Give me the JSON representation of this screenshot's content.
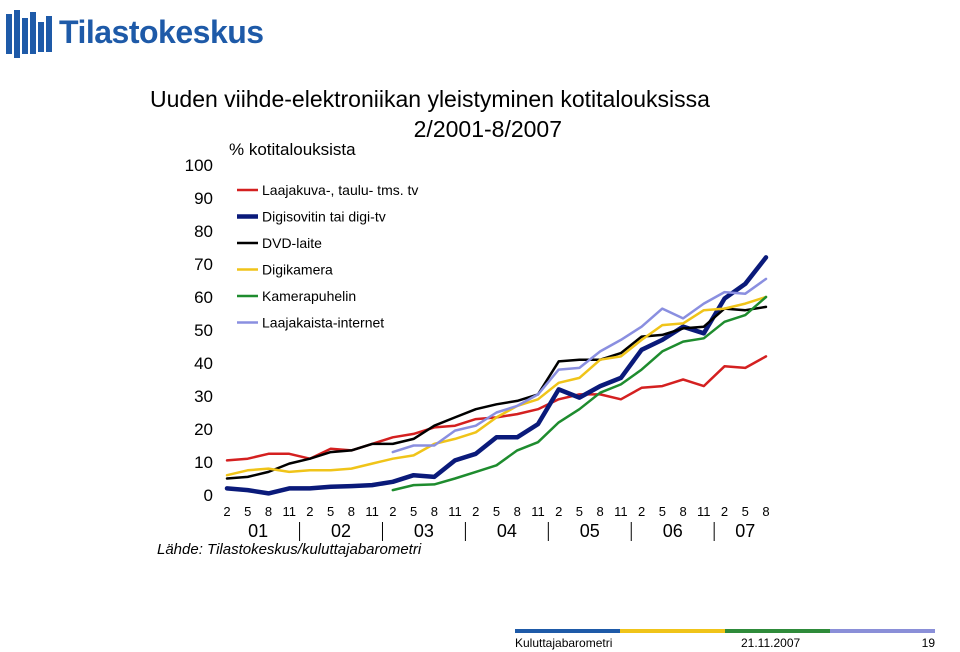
{
  "brand": {
    "name": "Tilastokeskus",
    "color": "#1e5aa8"
  },
  "title": {
    "line1": "Uuden viihde-elektroniikan yleistyminen kotitalouksissa",
    "line2": "2/2001-8/2007"
  },
  "y_unit": "% kotitalouksista",
  "source": "Lähde: Tilastokeskus/kuluttajabarometri",
  "footer": {
    "left": "Kuluttajabarometri",
    "date": "21.11.2007",
    "page": "19"
  },
  "footer_colors": [
    "#1e5aa8",
    "#f0c419",
    "#2e8b3a",
    "#8a8fd8"
  ],
  "chart_data": {
    "type": "line",
    "title": "Uuden viihde-elektroniikan yleistyminen kotitalouksissa 2/2001-8/2007",
    "ylabel": "% kotitalouksista",
    "xlabel": "",
    "ylim": [
      0,
      100
    ],
    "yticks": [
      0,
      10,
      20,
      30,
      40,
      50,
      60,
      70,
      80,
      90,
      100
    ],
    "x": [
      "2",
      "5",
      "8",
      "11",
      "2",
      "5",
      "8",
      "11",
      "2",
      "5",
      "8",
      "11",
      "2",
      "5",
      "8",
      "11",
      "2",
      "5",
      "8",
      "11",
      "2",
      "5",
      "8",
      "11",
      "2",
      "5",
      "8"
    ],
    "year_labels": [
      {
        "label": "01",
        "start": 0,
        "end": 3
      },
      {
        "label": "02",
        "start": 4,
        "end": 7
      },
      {
        "label": "03",
        "start": 8,
        "end": 11
      },
      {
        "label": "04",
        "start": 12,
        "end": 15
      },
      {
        "label": "05",
        "start": 16,
        "end": 19
      },
      {
        "label": "06",
        "start": 20,
        "end": 23
      },
      {
        "label": "07",
        "start": 24,
        "end": 26
      }
    ],
    "grid": false,
    "legend_position": "top-left",
    "series": [
      {
        "name": "Laajakuva-, taulu- tms. tv",
        "color": "#d42020",
        "width": 2.5,
        "values": [
          10.5,
          11,
          12.5,
          12.5,
          11,
          14,
          13.5,
          15.5,
          17.5,
          18.5,
          20.5,
          21,
          23,
          23.5,
          24.5,
          26,
          29,
          30.5,
          30.5,
          29,
          32.5,
          33,
          35,
          33,
          39,
          38.5,
          42
        ]
      },
      {
        "name": "Digisovitin tai digi-tv",
        "color": "#0a1a7a",
        "width": 4.5,
        "values": [
          2,
          1.5,
          0.5,
          2,
          2,
          2.5,
          2.7,
          3,
          4,
          6,
          5.5,
          10.5,
          12.5,
          17.5,
          17.5,
          21.5,
          32,
          29.5,
          33,
          35.5,
          44,
          47,
          51,
          49,
          59.5,
          64,
          72
        ]
      },
      {
        "name": "DVD-laite",
        "color": "#000000",
        "width": 2.5,
        "values": [
          5,
          5.5,
          7,
          9.5,
          11,
          13,
          13.5,
          15.5,
          15.5,
          17,
          21,
          23.5,
          26,
          27.5,
          28.5,
          30.5,
          40.5,
          41,
          41,
          43,
          48,
          48.5,
          50.5,
          51,
          56.5,
          56,
          57
        ]
      },
      {
        "name": "Digikamera",
        "color": "#f0c419",
        "width": 2.5,
        "values": [
          6,
          7.5,
          8,
          7,
          7.5,
          7.5,
          8,
          9.5,
          11,
          12,
          15.5,
          17,
          19,
          23.5,
          27,
          29,
          34,
          35.5,
          41,
          42,
          47,
          51.5,
          52,
          56,
          56.5,
          58,
          60
        ]
      },
      {
        "name": "Kamerapuhelin",
        "color": "#1e8c2e",
        "width": 2.5,
        "values": [
          null,
          null,
          null,
          null,
          null,
          null,
          null,
          null,
          1.5,
          3,
          3.2,
          5,
          7,
          9,
          13.5,
          16,
          22,
          26,
          31,
          33.5,
          38,
          43.5,
          46.5,
          47.5,
          52.5,
          54.5,
          60
        ]
      },
      {
        "name": "Laajakaista-internet",
        "color": "#8a8fe0",
        "width": 2.5,
        "values": [
          null,
          null,
          null,
          null,
          null,
          null,
          null,
          null,
          13,
          15,
          15,
          19.5,
          21,
          25,
          27,
          30.5,
          38,
          38.5,
          43.5,
          47,
          51,
          56.5,
          53.5,
          58,
          61.5,
          61,
          65.5
        ]
      }
    ]
  }
}
